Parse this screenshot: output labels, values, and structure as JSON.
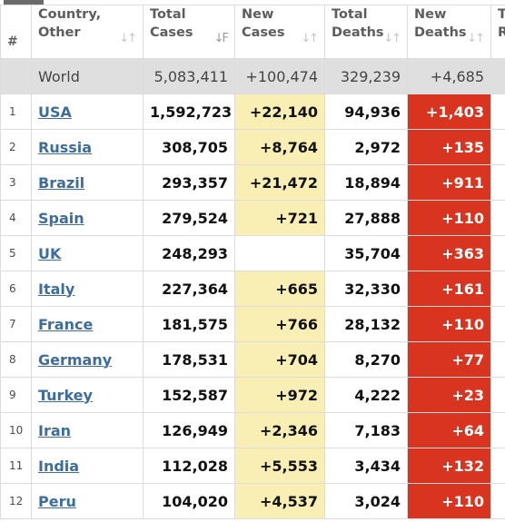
{
  "headers": {
    "index": "#",
    "country": [
      "Country,",
      "Other"
    ],
    "total_cases": [
      "Total",
      "Cases"
    ],
    "new_cases": [
      "New",
      "Cases"
    ],
    "total_deaths": [
      "Total",
      "Deaths"
    ],
    "new_deaths": [
      "New",
      "Deaths"
    ],
    "partial": [
      "T",
      "R"
    ]
  },
  "sort_icons": {
    "default": "sort-arrows-icon",
    "active": "sort-desc-icon"
  },
  "colors": {
    "new_cases_highlight": "#f9efb5",
    "new_deaths_highlight": "#d8341f",
    "world_row": "#dfdfdf",
    "link": "#3e6d9c"
  },
  "world": {
    "country": "World",
    "total_cases": "5,083,411",
    "new_cases": "+100,474",
    "total_deaths": "329,239",
    "new_deaths": "+4,685"
  },
  "rows": [
    {
      "index": "1",
      "country": "USA",
      "total_cases": "1,592,723",
      "new_cases": "+22,140",
      "total_deaths": "94,936",
      "new_deaths": "+1,403"
    },
    {
      "index": "2",
      "country": "Russia",
      "total_cases": "308,705",
      "new_cases": "+8,764",
      "total_deaths": "2,972",
      "new_deaths": "+135"
    },
    {
      "index": "3",
      "country": "Brazil",
      "total_cases": "293,357",
      "new_cases": "+21,472",
      "total_deaths": "18,894",
      "new_deaths": "+911"
    },
    {
      "index": "4",
      "country": "Spain",
      "total_cases": "279,524",
      "new_cases": "+721",
      "total_deaths": "27,888",
      "new_deaths": "+110"
    },
    {
      "index": "5",
      "country": "UK",
      "total_cases": "248,293",
      "new_cases": "",
      "total_deaths": "35,704",
      "new_deaths": "+363"
    },
    {
      "index": "6",
      "country": "Italy",
      "total_cases": "227,364",
      "new_cases": "+665",
      "total_deaths": "32,330",
      "new_deaths": "+161"
    },
    {
      "index": "7",
      "country": "France",
      "total_cases": "181,575",
      "new_cases": "+766",
      "total_deaths": "28,132",
      "new_deaths": "+110"
    },
    {
      "index": "8",
      "country": "Germany",
      "total_cases": "178,531",
      "new_cases": "+704",
      "total_deaths": "8,270",
      "new_deaths": "+77"
    },
    {
      "index": "9",
      "country": "Turkey",
      "total_cases": "152,587",
      "new_cases": "+972",
      "total_deaths": "4,222",
      "new_deaths": "+23"
    },
    {
      "index": "10",
      "country": "Iran",
      "total_cases": "126,949",
      "new_cases": "+2,346",
      "total_deaths": "7,183",
      "new_deaths": "+64"
    },
    {
      "index": "11",
      "country": "India",
      "total_cases": "112,028",
      "new_cases": "+5,553",
      "total_deaths": "3,434",
      "new_deaths": "+132"
    },
    {
      "index": "12",
      "country": "Peru",
      "total_cases": "104,020",
      "new_cases": "+4,537",
      "total_deaths": "3,024",
      "new_deaths": "+110"
    }
  ]
}
